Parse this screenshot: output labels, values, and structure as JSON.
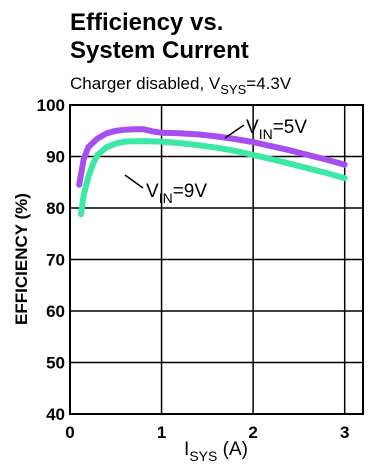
{
  "chart_data": {
    "type": "line",
    "title_line1": "Efficiency vs.",
    "title_line2": "System Current",
    "subtitle": {
      "prefix": "Charger disabled, V",
      "sub": "SYS",
      "suffix": "=4.3V"
    },
    "xlabel": {
      "main": "I",
      "sub": "SYS",
      "suffix": " (A)"
    },
    "ylabel": "EFFICIENCY (%)",
    "xlim": [
      0,
      3.2
    ],
    "ylim": [
      40,
      100
    ],
    "xticks": [
      0,
      1,
      2,
      3
    ],
    "yticks": [
      40,
      50,
      60,
      70,
      80,
      90,
      100
    ],
    "grid": true,
    "series": [
      {
        "name": "VIN=5V",
        "label": {
          "main": "V",
          "sub": "IN",
          "suffix": "=5V"
        },
        "color": "#a64ef0",
        "x": [
          0.1,
          0.15,
          0.2,
          0.3,
          0.4,
          0.5,
          0.6,
          0.7,
          0.8,
          0.9,
          1.0,
          1.2,
          1.4,
          1.6,
          1.8,
          2.0,
          2.2,
          2.4,
          2.6,
          2.8,
          3.0
        ],
        "y": [
          84.5,
          89.5,
          91.8,
          93.5,
          94.5,
          95.0,
          95.2,
          95.3,
          95.3,
          94.9,
          94.6,
          94.5,
          94.3,
          93.9,
          93.4,
          92.8,
          92.0,
          91.2,
          90.3,
          89.4,
          88.4
        ]
      },
      {
        "name": "VIN=9V",
        "label": {
          "main": "V",
          "sub": "IN",
          "suffix": "=9V"
        },
        "color": "#3be8a5",
        "x": [
          0.12,
          0.15,
          0.2,
          0.25,
          0.3,
          0.4,
          0.5,
          0.6,
          0.8,
          1.0,
          1.2,
          1.4,
          1.6,
          1.8,
          2.0,
          2.2,
          2.4,
          2.6,
          2.8,
          3.0
        ],
        "y": [
          78.8,
          82.5,
          86.0,
          88.5,
          90.3,
          91.8,
          92.5,
          92.9,
          93.0,
          92.9,
          92.6,
          92.2,
          91.7,
          91.1,
          90.3,
          89.5,
          88.6,
          87.7,
          86.8,
          85.8
        ]
      }
    ]
  }
}
